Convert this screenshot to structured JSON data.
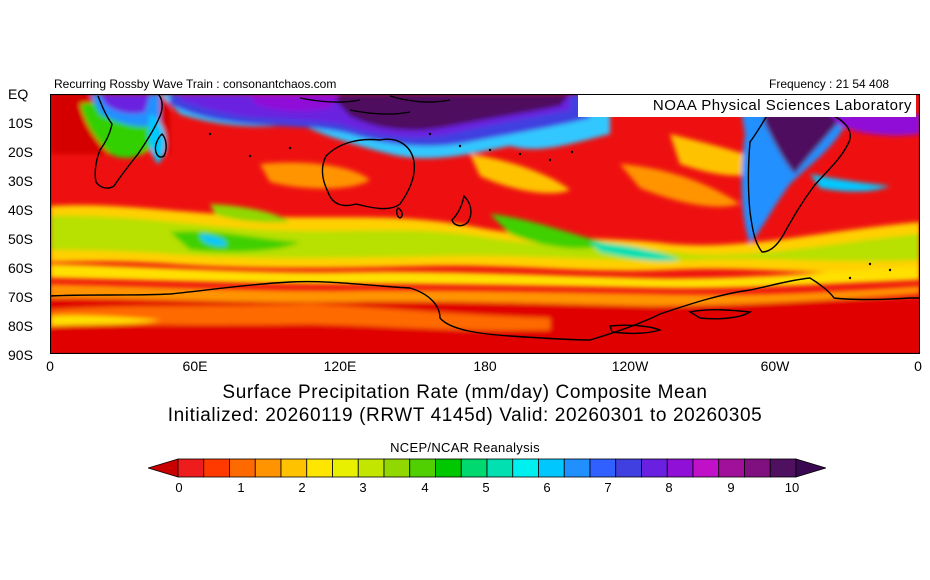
{
  "header": {
    "left_text": "Recurring Rossby Wave Train : consonantchaos.com",
    "right_text": "Frequency : 21 54 408",
    "lab_label": "NOAA Physical Sciences Laboratory"
  },
  "map": {
    "lat_labels": [
      "EQ",
      "10S",
      "20S",
      "30S",
      "40S",
      "50S",
      "60S",
      "70S",
      "80S",
      "90S"
    ],
    "lon_labels": [
      "0",
      "60E",
      "120E",
      "180",
      "120W",
      "60W",
      "0"
    ]
  },
  "title": {
    "line1": "Surface Precipitation Rate (mm/day) Composite Mean",
    "line2": "Initialized: 20260119 (RRWT 4145d) Valid: 20260301 to 20260305"
  },
  "source": "NCEP/NCAR Reanalysis",
  "colorbar": {
    "labels": [
      "0",
      "1",
      "2",
      "3",
      "4",
      "5",
      "6",
      "7",
      "8",
      "9",
      "10"
    ],
    "colors": [
      "#c80000",
      "#ee1c1c",
      "#ff3a00",
      "#ff6a00",
      "#ff9400",
      "#ffc200",
      "#ffe600",
      "#e8f000",
      "#c2e600",
      "#90d800",
      "#50d000",
      "#00c800",
      "#00d870",
      "#00e0b0",
      "#00f0f0",
      "#00c8ff",
      "#2090ff",
      "#3060ff",
      "#4040e0",
      "#6a20e0",
      "#9010d8",
      "#c010c8",
      "#a0109a",
      "#801080",
      "#501060",
      "#3a0850"
    ]
  }
}
